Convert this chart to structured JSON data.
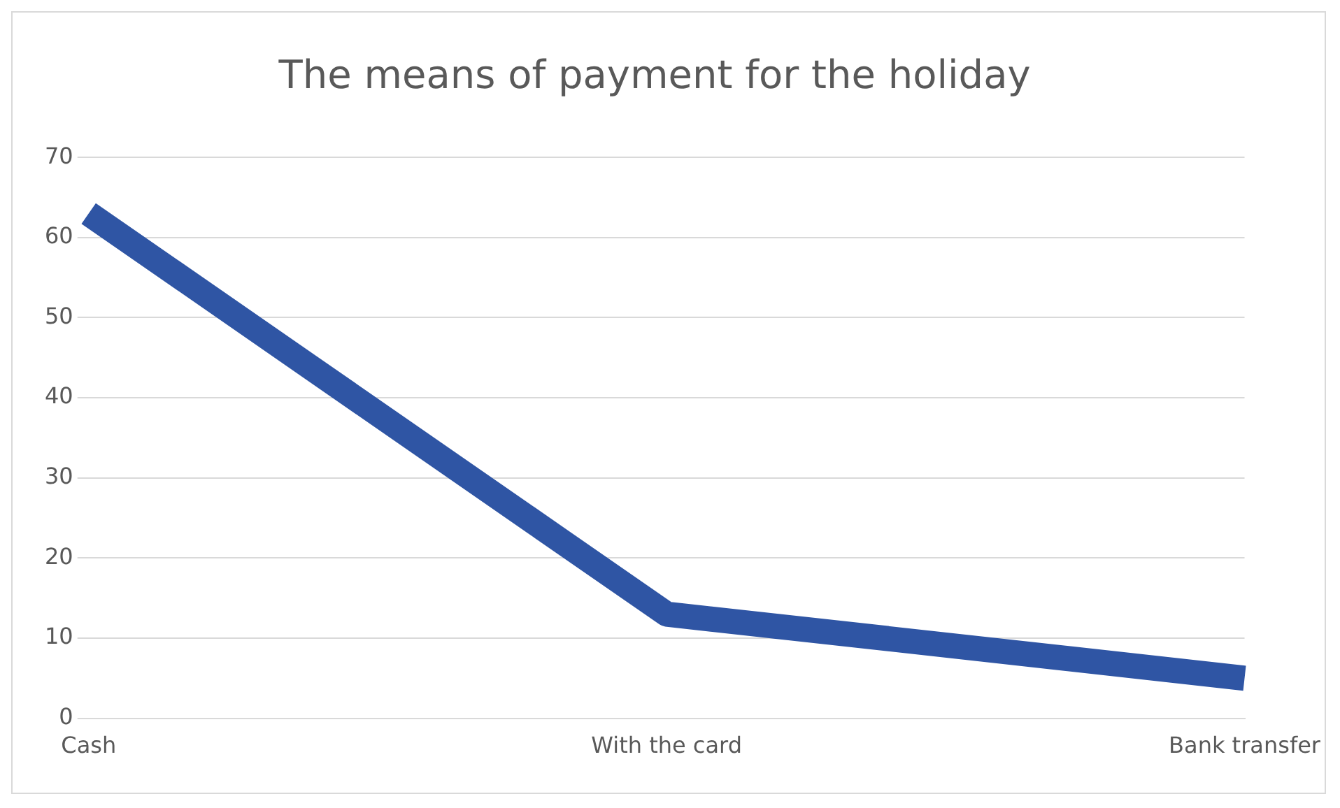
{
  "chart_data": {
    "type": "line",
    "title": "The means of payment for the holiday",
    "categories": [
      "Cash",
      "With the card",
      "Bank transfer"
    ],
    "series": [
      {
        "color": "#2f55a4",
        "values": [
          63,
          13,
          5
        ]
      }
    ],
    "ylim": [
      0,
      70
    ],
    "yticks": [
      0,
      10,
      20,
      30,
      40,
      50,
      60,
      70
    ],
    "grid": "y",
    "legend": false,
    "marker": "none",
    "line_style": "solid"
  }
}
